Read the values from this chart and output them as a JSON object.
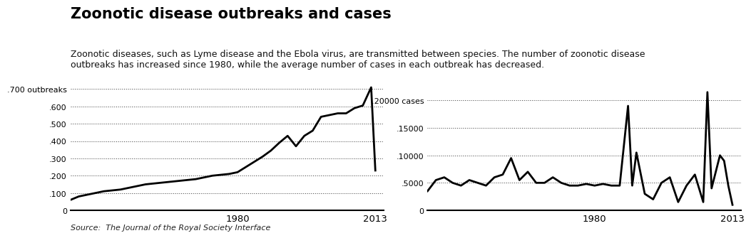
{
  "title": "Zoonotic disease outbreaks and cases",
  "subtitle": "Zoonotic diseases, such as Lyme disease and the Ebola virus, are transmitted between species. The number of zoonotic disease\noutbreaks has increased since 1980, while the average number of cases in each outbreak has decreased.",
  "source": "Source:  The Journal of the Royal Society Interface",
  "outbreaks_years": [
    1940,
    1942,
    1944,
    1946,
    1948,
    1950,
    1952,
    1954,
    1956,
    1958,
    1960,
    1962,
    1964,
    1966,
    1968,
    1970,
    1972,
    1974,
    1976,
    1978,
    1980,
    1982,
    1984,
    1986,
    1988,
    1990,
    1992,
    1994,
    1996,
    1998,
    2000,
    2002,
    2004,
    2006,
    2008,
    2010,
    2012,
    2013
  ],
  "outbreaks_values": [
    60,
    80,
    90,
    100,
    110,
    115,
    120,
    130,
    140,
    150,
    155,
    160,
    165,
    170,
    175,
    180,
    190,
    200,
    205,
    210,
    220,
    250,
    280,
    310,
    345,
    390,
    430,
    370,
    430,
    460,
    540,
    550,
    560,
    560,
    590,
    605,
    710,
    230
  ],
  "outbreaks_yticks": [
    0,
    100,
    200,
    300,
    400,
    500,
    600,
    700
  ],
  "outbreaks_ytick_labels": [
    "0",
    ".100",
    ".200",
    ".300",
    ".400",
    ".500",
    ".600",
    ".700 outbreaks"
  ],
  "outbreaks_xlim": [
    1940,
    2015
  ],
  "outbreaks_ylim": [
    0,
    730
  ],
  "cases_years": [
    1940,
    1942,
    1944,
    1946,
    1948,
    1950,
    1952,
    1954,
    1956,
    1958,
    1960,
    1962,
    1964,
    1966,
    1968,
    1970,
    1972,
    1974,
    1976,
    1978,
    1980,
    1982,
    1984,
    1986,
    1988,
    1989,
    1990,
    1992,
    1994,
    1996,
    1998,
    2000,
    2002,
    2004,
    2006,
    2007,
    2008,
    2010,
    2011,
    2012,
    2013
  ],
  "cases_values": [
    3500,
    5500,
    6000,
    5000,
    4500,
    5500,
    5000,
    4500,
    6000,
    6500,
    9500,
    5500,
    7000,
    5000,
    5000,
    6000,
    5000,
    4500,
    4500,
    4800,
    4500,
    4800,
    4500,
    4500,
    19000,
    4500,
    10500,
    3000,
    2000,
    5000,
    6000,
    1500,
    4500,
    6500,
    1500,
    21500,
    4000,
    10000,
    9000,
    4500,
    1000
  ],
  "cases_yticks": [
    0,
    5000,
    10000,
    15000,
    20000
  ],
  "cases_ytick_labels": [
    "0",
    ".5000",
    ".10000",
    ".15000",
    ".20000 cases"
  ],
  "cases_xlim": [
    1940,
    2015
  ],
  "cases_ylim": [
    0,
    23000
  ],
  "line_color": "#000000",
  "line_width": 2.0,
  "bg_color": "#ffffff",
  "grid_color": "#000000",
  "grid_style": "dotted",
  "grid_alpha": 0.7,
  "xticks": [
    1980,
    2013
  ],
  "title_fontsize": 15,
  "subtitle_fontsize": 9
}
